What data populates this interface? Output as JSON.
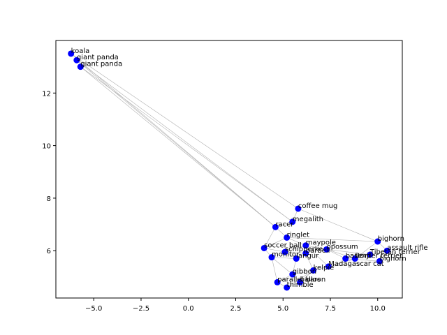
{
  "chart_data": {
    "type": "scatter",
    "title": "",
    "xlabel": "",
    "ylabel": "",
    "xlim": [
      -7.0,
      11.3
    ],
    "ylim": [
      4.2,
      14.0
    ],
    "xticks": [
      -5.0,
      -2.5,
      0.0,
      2.5,
      5.0,
      7.5,
      10.0
    ],
    "xtick_labels": [
      "−5.0",
      "−2.5",
      "0.0",
      "2.5",
      "5.0",
      "7.5",
      "10.0"
    ],
    "yticks": [
      6,
      8,
      10,
      12
    ],
    "ytick_labels": [
      "6",
      "8",
      "10",
      "12"
    ],
    "grid": false,
    "point_color": "#0000ff",
    "edge_color": "#b0b0b0",
    "points": [
      {
        "label": "koala",
        "x": -6.2,
        "y": 13.5
      },
      {
        "label": "giant panda",
        "x": -5.9,
        "y": 13.25
      },
      {
        "label": "giant panda",
        "x": -5.7,
        "y": 13.0
      },
      {
        "label": "coffee mug",
        "x": 5.8,
        "y": 7.6
      },
      {
        "label": "megalith",
        "x": 5.5,
        "y": 7.1
      },
      {
        "label": "racer",
        "x": 4.6,
        "y": 6.9
      },
      {
        "label": "ringlet",
        "x": 5.2,
        "y": 6.5
      },
      {
        "label": "bighorn",
        "x": 10.0,
        "y": 6.35
      },
      {
        "label": "maypole",
        "x": 6.2,
        "y": 6.2
      },
      {
        "label": "soccer ball",
        "x": 4.0,
        "y": 6.1
      },
      {
        "label": "opossum",
        "x": 7.3,
        "y": 6.05
      },
      {
        "label": "assault rifle",
        "x": 10.5,
        "y": 6.0
      },
      {
        "label": "schipperke",
        "x": 5.1,
        "y": 5.95
      },
      {
        "label": "barbell",
        "x": 6.2,
        "y": 5.9
      },
      {
        "label": "Tibetan terrier",
        "x": 9.6,
        "y": 5.85
      },
      {
        "label": "monitor",
        "x": 4.4,
        "y": 5.75
      },
      {
        "label": "langur",
        "x": 5.7,
        "y": 5.7
      },
      {
        "label": "basenji",
        "x": 8.3,
        "y": 5.7
      },
      {
        "label": "Border terrier",
        "x": 8.8,
        "y": 5.7
      },
      {
        "label": "bighorn",
        "x": 10.1,
        "y": 5.6
      },
      {
        "label": "Madagascar cat",
        "x": 7.4,
        "y": 5.4
      },
      {
        "label": "kelpie",
        "x": 6.6,
        "y": 5.25
      },
      {
        "label": "gibbon",
        "x": 5.5,
        "y": 5.1
      },
      {
        "label": "parallel bars",
        "x": 4.7,
        "y": 4.8
      },
      {
        "label": "balloon",
        "x": 5.9,
        "y": 4.8
      },
      {
        "label": "thimble",
        "x": 5.2,
        "y": 4.6
      }
    ],
    "edges": [
      [
        0,
        3
      ],
      [
        0,
        5
      ],
      [
        1,
        4
      ],
      [
        1,
        5
      ],
      [
        2,
        4
      ],
      [
        2,
        5
      ],
      [
        3,
        4
      ],
      [
        4,
        5
      ],
      [
        5,
        6
      ],
      [
        5,
        9
      ],
      [
        6,
        7
      ],
      [
        6,
        9
      ],
      [
        7,
        11
      ],
      [
        7,
        18
      ],
      [
        8,
        10
      ],
      [
        8,
        20
      ],
      [
        9,
        12
      ],
      [
        9,
        15
      ],
      [
        10,
        17
      ],
      [
        10,
        18
      ],
      [
        11,
        14
      ],
      [
        11,
        19
      ],
      [
        12,
        13
      ],
      [
        12,
        16
      ],
      [
        13,
        16
      ],
      [
        13,
        21
      ],
      [
        14,
        17
      ],
      [
        14,
        20
      ],
      [
        15,
        16
      ],
      [
        15,
        22
      ],
      [
        16,
        22
      ],
      [
        17,
        19
      ],
      [
        18,
        20
      ],
      [
        19,
        20
      ],
      [
        20,
        21
      ],
      [
        21,
        22
      ],
      [
        21,
        25
      ],
      [
        22,
        23
      ],
      [
        22,
        24
      ],
      [
        23,
        25
      ],
      [
        24,
        25
      ],
      [
        24,
        21
      ],
      [
        3,
        7
      ],
      [
        6,
        8
      ],
      [
        15,
        23
      ],
      [
        12,
        8
      ],
      [
        10,
        14
      ]
    ]
  }
}
